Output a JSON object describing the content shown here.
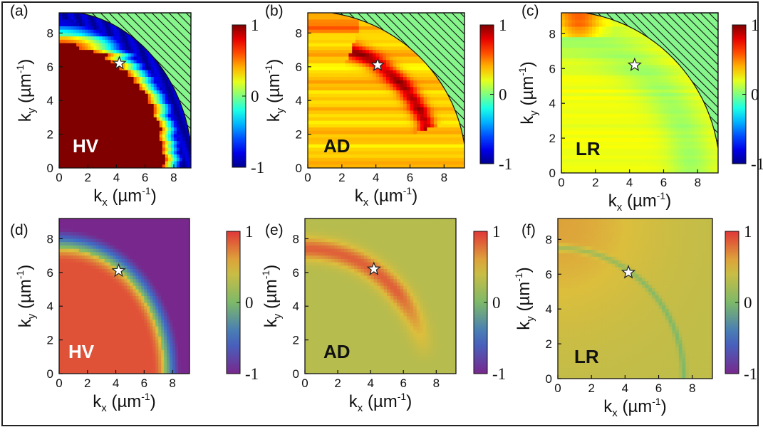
{
  "figure": {
    "kind": "2D polarization maps in momentum space, experiment (top row) and theory (bottom row)"
  },
  "chart_data": [
    {
      "type": "heatmap",
      "panel": "(a)",
      "label": "HV",
      "row": "measurement",
      "xlabel": "k_x (µm⁻¹)",
      "ylabel": "k_y (µm⁻¹)",
      "xlim": [
        0,
        9.2
      ],
      "ylim": [
        0,
        9.2
      ],
      "xticks": [
        0,
        2,
        4,
        6,
        8
      ],
      "yticks": [
        0,
        2,
        4,
        6,
        8
      ],
      "colorbar": {
        "min": -1,
        "max": 1,
        "ticks": [
          "1",
          "0",
          "-1"
        ]
      },
      "colormap": "jet",
      "hatched_region": "outer corner beyond k ≈ 9.3 µm⁻¹",
      "star_marker": {
        "kx": 4.2,
        "ky": 6.2
      },
      "features": [
        {
          "description": "disk k < 7.4",
          "value": 1.0
        },
        {
          "description": "ring 7.4 < k < 8.6",
          "value_range": [
            0.5,
            -0.9
          ]
        },
        {
          "description": "outer region k > 8.6",
          "value": -0.9
        }
      ]
    },
    {
      "type": "heatmap",
      "panel": "(b)",
      "label": "AD",
      "row": "measurement",
      "xlabel": "k_x (µm⁻¹)",
      "ylabel": "k_y (µm⁻¹)",
      "xlim": [
        0,
        9.2
      ],
      "ylim": [
        0,
        9.2
      ],
      "xticks": [
        0,
        2,
        4,
        6,
        8
      ],
      "yticks": [
        0,
        2,
        4,
        6,
        8
      ],
      "colorbar": {
        "min": -1,
        "max": 1,
        "ticks": [
          "1",
          "0",
          "-1"
        ]
      },
      "colormap": "jet",
      "hatched_region": "outer corner beyond k ≈ 9.3 µm⁻¹",
      "star_marker": {
        "kx": 4.1,
        "ky": 6.1
      },
      "features": [
        {
          "description": "background",
          "value": 0.35
        },
        {
          "description": "arc at k ≈ 7.4, angle 20°–68°",
          "value": 0.85
        }
      ]
    },
    {
      "type": "heatmap",
      "panel": "(c)",
      "label": "LR",
      "row": "measurement",
      "xlabel": "k_x (µm⁻¹)",
      "ylabel": "k_y (µm⁻¹)",
      "xlim": [
        0,
        9.2
      ],
      "ylim": [
        0,
        9.2
      ],
      "xticks": [
        0,
        2,
        4,
        6,
        8
      ],
      "yticks": [
        0,
        2,
        4,
        6,
        8
      ],
      "colorbar": {
        "min": -1,
        "max": 1,
        "ticks": [
          "1",
          "0",
          "-1"
        ]
      },
      "colormap": "jet",
      "hatched_region": "outer corner beyond k ≈ 9.3 µm⁻¹",
      "star_marker": {
        "kx": 4.3,
        "ky": 6.2
      },
      "features": [
        {
          "description": "background",
          "value": 0.2
        },
        {
          "description": "ring near k ≈ 7.8",
          "value": 0.05
        },
        {
          "description": "spot near (1, 8.5)",
          "value": 0.6
        }
      ]
    },
    {
      "type": "heatmap",
      "panel": "(d)",
      "label": "HV",
      "row": "theory",
      "xlabel": "k_x (µm⁻¹)",
      "ylabel": "k_y (µm⁻¹)",
      "xlim": [
        0,
        9.2
      ],
      "ylim": [
        0,
        9.2
      ],
      "xticks": [
        0,
        2,
        4,
        6,
        8
      ],
      "yticks": [
        0,
        2,
        4,
        6,
        8
      ],
      "colorbar": {
        "min": -1,
        "max": 1,
        "ticks": [
          "1",
          "0",
          "-1"
        ]
      },
      "colormap": "spectral",
      "star_marker": {
        "kx": 4.2,
        "ky": 6.1
      },
      "features": [
        {
          "description": "disk k < 7.4",
          "value": 0.9
        },
        {
          "description": "transition 6.6 < k < 9",
          "value_range": [
            0.9,
            -0.85
          ]
        },
        {
          "description": "outer region",
          "value": -0.85
        }
      ]
    },
    {
      "type": "heatmap",
      "panel": "(e)",
      "label": "AD",
      "row": "theory",
      "xlabel": "k_x (µm⁻¹)",
      "ylabel": "k_y (µm⁻¹)",
      "xlim": [
        0,
        9.2
      ],
      "ylim": [
        0,
        9.2
      ],
      "xticks": [
        0,
        2,
        4,
        6,
        8
      ],
      "yticks": [
        0,
        2,
        4,
        6,
        8
      ],
      "colorbar": {
        "min": -1,
        "max": 1,
        "ticks": [
          "1",
          "0",
          "-1"
        ]
      },
      "colormap": "spectral",
      "star_marker": {
        "kx": 4.2,
        "ky": 6.2
      },
      "features": [
        {
          "description": "background",
          "value": 0.3
        },
        {
          "description": "arc at k ≈ 7.4, angle 5°–90°, peak near 60°",
          "value": 0.85
        }
      ]
    },
    {
      "type": "heatmap",
      "panel": "(f)",
      "label": "LR",
      "row": "theory",
      "xlabel": "k_x (µm⁻¹)",
      "ylabel": "k_y (µm⁻¹)",
      "xlim": [
        0,
        9.2
      ],
      "ylim": [
        0,
        9.2
      ],
      "xticks": [
        0,
        2,
        4,
        6,
        8
      ],
      "yticks": [
        0,
        2,
        4,
        6,
        8
      ],
      "colorbar": {
        "min": -1,
        "max": 1,
        "ticks": [
          "1",
          "0",
          "-1"
        ]
      },
      "colormap": "spectral",
      "star_marker": {
        "kx": 4.2,
        "ky": 6.1
      },
      "features": [
        {
          "description": "background",
          "value": 0.35
        },
        {
          "description": "thin ring at k ≈ 7.5",
          "value": 0.0
        },
        {
          "description": "upper-left glow",
          "value": 0.55
        }
      ]
    }
  ]
}
